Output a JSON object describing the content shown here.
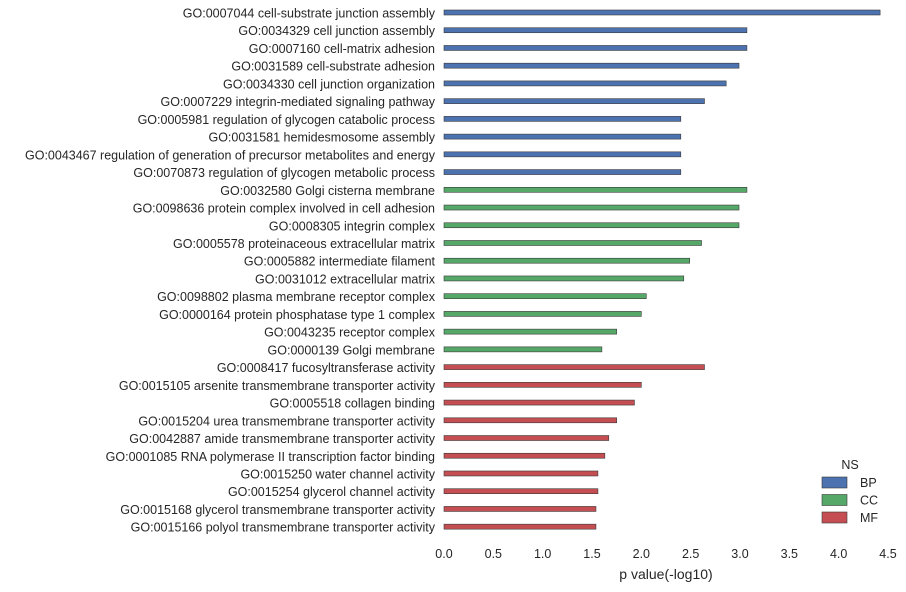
{
  "chart_data": {
    "type": "bar",
    "orientation": "horizontal",
    "xlabel": "p value(-log10)",
    "ylabel": "",
    "xlim": [
      0,
      4.5
    ],
    "xticks": [
      "0.0",
      "0.5",
      "1.0",
      "1.5",
      "2.0",
      "2.5",
      "3.0",
      "3.5",
      "4.0",
      "4.5"
    ],
    "grid": false,
    "legend": {
      "title": "NS",
      "position": "bottom-right",
      "entries": [
        {
          "name": "BP",
          "color": "#4c72b0"
        },
        {
          "name": "CC",
          "color": "#55a868"
        },
        {
          "name": "MF",
          "color": "#c44e52"
        }
      ]
    },
    "bars": [
      {
        "label": "GO:0007044 cell-substrate junction assembly",
        "value": 4.42,
        "group": "BP"
      },
      {
        "label": "GO:0034329 cell junction assembly",
        "value": 3.07,
        "group": "BP"
      },
      {
        "label": "GO:0007160 cell-matrix adhesion",
        "value": 3.07,
        "group": "BP"
      },
      {
        "label": "GO:0031589 cell-substrate adhesion",
        "value": 2.99,
        "group": "BP"
      },
      {
        "label": "GO:0034330 cell junction organization",
        "value": 2.86,
        "group": "BP"
      },
      {
        "label": "GO:0007229 integrin-mediated signaling pathway",
        "value": 2.64,
        "group": "BP"
      },
      {
        "label": "GO:0005981 regulation of glycogen catabolic process",
        "value": 2.4,
        "group": "BP"
      },
      {
        "label": "GO:0031581 hemidesmosome assembly",
        "value": 2.4,
        "group": "BP"
      },
      {
        "label": "GO:0043467 regulation of generation of precursor metabolites and energy",
        "value": 2.4,
        "group": "BP"
      },
      {
        "label": "GO:0070873 regulation of glycogen metabolic process",
        "value": 2.4,
        "group": "BP"
      },
      {
        "label": "GO:0032580 Golgi cisterna membrane",
        "value": 3.07,
        "group": "CC"
      },
      {
        "label": "GO:0098636 protein complex involved in cell adhesion",
        "value": 2.99,
        "group": "CC"
      },
      {
        "label": "GO:0008305 integrin complex",
        "value": 2.99,
        "group": "CC"
      },
      {
        "label": "GO:0005578 proteinaceous extracellular matrix",
        "value": 2.61,
        "group": "CC"
      },
      {
        "label": "GO:0005882 intermediate filament",
        "value": 2.49,
        "group": "CC"
      },
      {
        "label": "GO:0031012 extracellular matrix",
        "value": 2.43,
        "group": "CC"
      },
      {
        "label": "GO:0098802 plasma membrane receptor complex",
        "value": 2.05,
        "group": "CC"
      },
      {
        "label": "GO:0000164 protein phosphatase type 1 complex",
        "value": 2.0,
        "group": "CC"
      },
      {
        "label": "GO:0043235 receptor complex",
        "value": 1.75,
        "group": "CC"
      },
      {
        "label": "GO:0000139 Golgi membrane",
        "value": 1.6,
        "group": "CC"
      },
      {
        "label": "GO:0008417 fucosyltransferase activity",
        "value": 2.64,
        "group": "MF"
      },
      {
        "label": "GO:0015105 arsenite transmembrane transporter activity",
        "value": 2.0,
        "group": "MF"
      },
      {
        "label": "GO:0005518 collagen binding",
        "value": 1.93,
        "group": "MF"
      },
      {
        "label": "GO:0015204 urea transmembrane transporter activity",
        "value": 1.75,
        "group": "MF"
      },
      {
        "label": "GO:0042887 amide transmembrane transporter activity",
        "value": 1.67,
        "group": "MF"
      },
      {
        "label": "GO:0001085 RNA polymerase II transcription factor binding",
        "value": 1.63,
        "group": "MF"
      },
      {
        "label": "GO:0015250 water channel activity",
        "value": 1.56,
        "group": "MF"
      },
      {
        "label": "GO:0015254 glycerol channel activity",
        "value": 1.56,
        "group": "MF"
      },
      {
        "label": "GO:0015168 glycerol transmembrane transporter activity",
        "value": 1.54,
        "group": "MF"
      },
      {
        "label": "GO:0015166 polyol transmembrane transporter activity",
        "value": 1.54,
        "group": "MF"
      }
    ]
  }
}
